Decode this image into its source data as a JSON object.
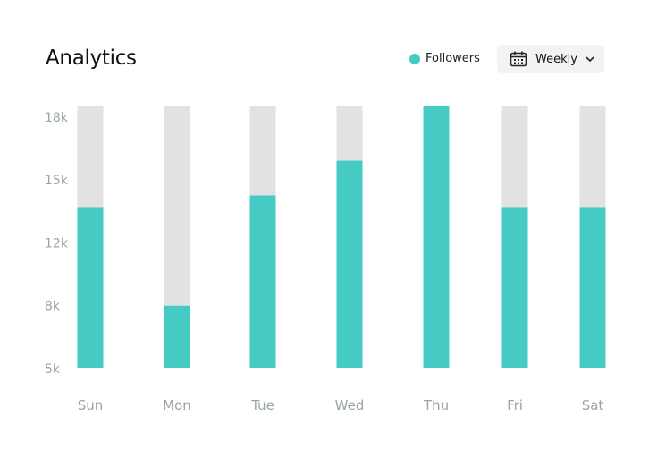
{
  "header": {
    "title": "Analytics",
    "period_label": "Weekly"
  },
  "colors": {
    "accent": "#45cbc3",
    "track": "#e2e2e2",
    "tick": "#9aa6a4"
  },
  "chart_data": {
    "type": "bar",
    "title": "Analytics",
    "categories": [
      "Sun",
      "Mon",
      "Tue",
      "Wed",
      "Thu",
      "Fri",
      "Sat"
    ],
    "series": [
      {
        "name": "Followers",
        "values": [
          13.3,
          8.2,
          13.9,
          15.7,
          18.5,
          13.3,
          13.3
        ]
      }
    ],
    "value_unit": "k",
    "ylim": [
      5,
      18.5
    ],
    "yticks": [
      {
        "value": 5,
        "label": "5k"
      },
      {
        "value": 8.25,
        "label": "8k"
      },
      {
        "value": 11.5,
        "label": "12k"
      },
      {
        "value": 14.75,
        "label": "15k"
      },
      {
        "value": 18,
        "label": "18k"
      }
    ],
    "xlabel": "",
    "ylabel": "",
    "grid": false,
    "legend": "top-right"
  }
}
